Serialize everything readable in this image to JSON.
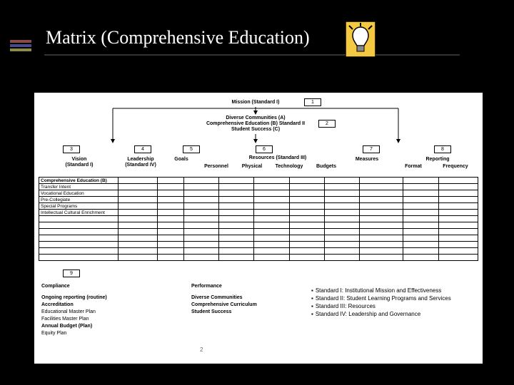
{
  "title": "Matrix (Comprehensive Education)",
  "bulb_stroke": "#000000",
  "bulb_fill": "#f5c842",
  "bg_color": "#000000",
  "content_bg": "#ffffff",
  "hierarchy": {
    "level1": {
      "label": "Mission (Standard I)",
      "num": "1"
    },
    "level2": {
      "lines": [
        "Diverse Communities (A)",
        "Comprehensive Education (B) Standard II",
        "Student Success (C)"
      ],
      "num": "2"
    },
    "num_row": [
      "3",
      "4",
      "5",
      "6",
      "7",
      "8"
    ],
    "col_groups": [
      {
        "label": "Vision",
        "sub": "(Standard I)"
      },
      {
        "label": "Leadership",
        "sub": "(Standard IV)"
      },
      {
        "label": "Goals",
        "sub": ""
      },
      {
        "label": "Resources (Standard III)",
        "subs": [
          "Personnel",
          "Physical",
          "Technology",
          "Budgets"
        ]
      },
      {
        "label": "Measures",
        "sub": ""
      },
      {
        "label": "Reporting",
        "subs": [
          "Format",
          "Frequency"
        ]
      }
    ]
  },
  "rows": [
    "Comprehensive Education (B)",
    "Transfer Intent",
    "Vocational Education",
    "Pre-Collegiate",
    "Special Programs",
    "Intellectual Cultural Enrichment",
    "",
    "",
    "",
    "",
    "",
    "",
    ""
  ],
  "lower": {
    "num": "9",
    "col1_head": "Compliance",
    "col1_items": [
      "Ongoing reporting (routine)",
      "Accreditation",
      "Educational Master Plan",
      "Facilities Master Plan",
      "Annual Budget (Plan)",
      "Equity Plan"
    ],
    "col2_head": "Performance",
    "col2_items": [
      "Diverse Communities",
      "Comprehensive Curriculum",
      "Student Success"
    ]
  },
  "legend": [
    "Standard I: Institutional Mission and Effectiveness",
    "Standard II: Student Learning Programs and Services",
    "Standard III: Resources",
    "Standard IV: Leadership and Governance"
  ],
  "page_number": "2",
  "grid_cols_pct": [
    18,
    9,
    6,
    8,
    8,
    8,
    8,
    8,
    10,
    8,
    9
  ]
}
